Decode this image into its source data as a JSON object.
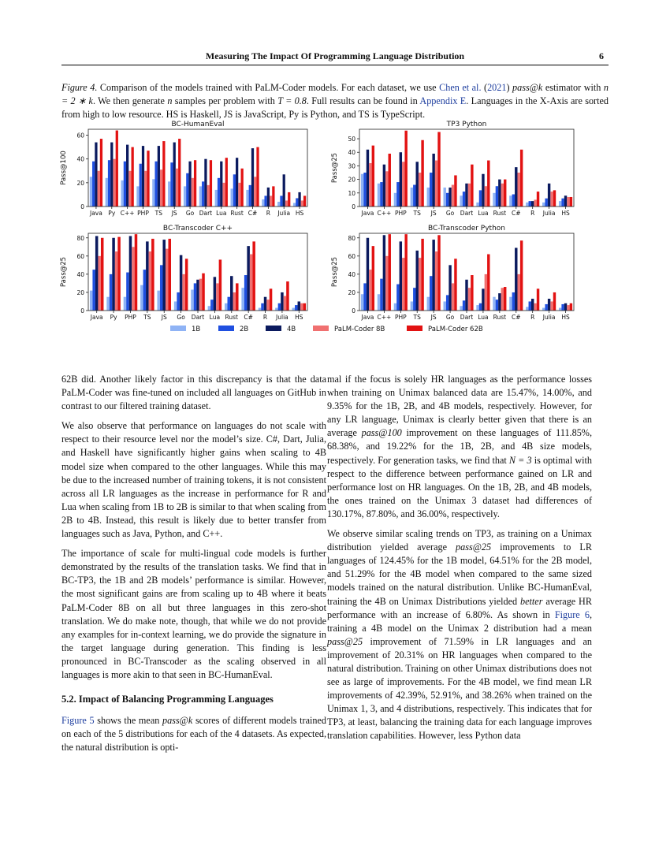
{
  "header": {
    "title": "Measuring The Impact Of Programming Language Distribution",
    "page_number": "6"
  },
  "caption": {
    "label": "Figure 4.",
    "t1": " Comparison of the models trained with PaLM-Coder models. For each dataset, we use ",
    "cite": "Chen et al.",
    "cite_year": "(2021)",
    "t2": " estimator with ",
    "m_eq": "n = 2 ∗ k",
    "t3": ". We then generate ",
    "m_n": "n",
    "t4": " samples per problem with ",
    "m_T": "T = 0.8",
    "t5": ". Full results can be found in ",
    "appendix": "Appendix E",
    "t6": ". Languages in the X-Axis are sorted from high to low resource. HS is Haskell, JS is JavaScript, Py is Python, and TS is TypeScript.",
    "passk": "pass@k"
  },
  "chart_data": [
    {
      "type": "bar",
      "title": "BC-HumanEval",
      "ylabel": "Pass@100",
      "ylim": [
        0,
        65
      ],
      "yticks": [
        0,
        20,
        40,
        60
      ],
      "categories": [
        "Java",
        "Py",
        "C++",
        "PHP",
        "TS",
        "JS",
        "Go",
        "Dart",
        "Lua",
        "Rust",
        "C#",
        "R",
        "Julia",
        "HS"
      ],
      "series": [
        {
          "name": "1B",
          "values": [
            25,
            24,
            22,
            17,
            23,
            21,
            17,
            17,
            14,
            15,
            14,
            6,
            4,
            3
          ]
        },
        {
          "name": "2B",
          "values": [
            38,
            39,
            38,
            36,
            38,
            37,
            28,
            21,
            24,
            27,
            18,
            9,
            9,
            7
          ]
        },
        {
          "name": "4B",
          "values": [
            54,
            54,
            52,
            51,
            51,
            54,
            38,
            40,
            38,
            41,
            49,
            16,
            27,
            12
          ]
        },
        {
          "name": "PaLM-Coder 8B",
          "values": [
            30,
            40,
            30,
            30,
            31,
            32,
            24,
            18,
            20,
            20,
            25,
            9,
            5,
            5
          ]
        },
        {
          "name": "PaLM-Coder 62B",
          "values": [
            57,
            64,
            50,
            47,
            55,
            57,
            39,
            39,
            41,
            32,
            50,
            17,
            12,
            9
          ]
        }
      ]
    },
    {
      "type": "bar",
      "title": "TP3 Python",
      "ylabel": "Pass@25",
      "ylim": [
        0,
        57
      ],
      "yticks": [
        0,
        10,
        20,
        30,
        40,
        50
      ],
      "categories": [
        "Java",
        "C++",
        "PHP",
        "TS",
        "JS",
        "Go",
        "Dart",
        "Lua",
        "Rust",
        "C#",
        "R",
        "Julia",
        "HS"
      ],
      "series": [
        {
          "name": "1B",
          "values": [
            24,
            17,
            10,
            14,
            14,
            14,
            8,
            3,
            10,
            8,
            3,
            3,
            4
          ]
        },
        {
          "name": "2B",
          "values": [
            25,
            18,
            18,
            16,
            25,
            10,
            11,
            12,
            15,
            9,
            4,
            6,
            6
          ]
        },
        {
          "name": "4B",
          "values": [
            42,
            31,
            40,
            33,
            39,
            14,
            17,
            24,
            20,
            29,
            4,
            17,
            8
          ]
        },
        {
          "name": "PaLM-Coder 8B",
          "values": [
            32,
            26,
            33,
            25,
            34,
            16,
            17,
            15,
            17,
            25,
            5,
            11,
            7
          ]
        },
        {
          "name": "PaLM-Coder 62B",
          "values": [
            45,
            39,
            56,
            49,
            55,
            23,
            31,
            34,
            20,
            42,
            11,
            12,
            7
          ]
        }
      ]
    },
    {
      "type": "bar",
      "title": "BC-Transcoder C++",
      "ylabel": "Pass@25",
      "ylim": [
        0,
        85
      ],
      "yticks": [
        0,
        20,
        40,
        60,
        80
      ],
      "categories": [
        "Java",
        "Py",
        "PHP",
        "TS",
        "JS",
        "Go",
        "Dart",
        "Lua",
        "Rust",
        "C#",
        "R",
        "Julia",
        "HS"
      ],
      "series": [
        {
          "name": "1B",
          "values": [
            22,
            15,
            15,
            28,
            22,
            10,
            23,
            5,
            8,
            25,
            3,
            3,
            3
          ]
        },
        {
          "name": "2B",
          "values": [
            45,
            40,
            42,
            45,
            50,
            20,
            30,
            12,
            15,
            39,
            8,
            8,
            6
          ]
        },
        {
          "name": "4B",
          "values": [
            82,
            80,
            82,
            76,
            78,
            61,
            34,
            37,
            38,
            71,
            15,
            20,
            10
          ]
        },
        {
          "name": "PaLM-Coder 8B",
          "values": [
            60,
            65,
            70,
            65,
            68,
            40,
            35,
            30,
            20,
            62,
            12,
            16,
            8
          ]
        },
        {
          "name": "PaLM-Coder 62B",
          "values": [
            80,
            81,
            84,
            79,
            79,
            57,
            41,
            56,
            30,
            76,
            24,
            32,
            8
          ]
        }
      ]
    },
    {
      "type": "bar",
      "title": "BC-Transcoder Python",
      "ylabel": "Pass@25",
      "ylim": [
        0,
        85
      ],
      "yticks": [
        0,
        20,
        40,
        60,
        80
      ],
      "categories": [
        "Java",
        "C++",
        "PHP",
        "TS",
        "JS",
        "Go",
        "Dart",
        "Lua",
        "Rust",
        "C#",
        "R",
        "Julia",
        "HS"
      ],
      "series": [
        {
          "name": "1B",
          "values": [
            18,
            18,
            8,
            10,
            15,
            10,
            5,
            6,
            15,
            15,
            4,
            3,
            3
          ]
        },
        {
          "name": "2B",
          "values": [
            30,
            35,
            29,
            25,
            38,
            17,
            11,
            8,
            12,
            20,
            10,
            7,
            7
          ]
        },
        {
          "name": "4B",
          "values": [
            80,
            83,
            76,
            66,
            78,
            50,
            34,
            24,
            19,
            69,
            13,
            13,
            8
          ]
        },
        {
          "name": "PaLM-Coder 8B",
          "values": [
            45,
            60,
            58,
            58,
            65,
            30,
            25,
            40,
            25,
            40,
            8,
            10,
            6
          ]
        },
        {
          "name": "PaLM-Coder 62B",
          "values": [
            71,
            84,
            84,
            79,
            83,
            57,
            39,
            62,
            26,
            77,
            24,
            20,
            8
          ]
        }
      ]
    }
  ],
  "legend": [
    {
      "label": "1B",
      "color": "#8fb3f5"
    },
    {
      "label": "2B",
      "color": "#1f4fe0"
    },
    {
      "label": "4B",
      "color": "#0b1a5e"
    },
    {
      "label": "PaLM-Coder 8B",
      "color": "#f07070"
    },
    {
      "label": "PaLM-Coder 62B",
      "color": "#e21212"
    }
  ],
  "left": {
    "p1": "62B did. Another likely factor in this discrepancy is that the data PaLM-Coder was fine-tuned on included all languages on GitHub in contrast to our filtered training dataset.",
    "p2": "We also observe that performance on languages do not scale with respect to their resource level nor the model’s size. C#, Dart, Julia, and Haskell have significantly higher gains when scaling to 4B model size when compared to the other languages. While this may be due to the increased number of training tokens, it is not consistent across all LR languages as the increase in performance for R and Lua when scaling from 1B to 2B is similar to that when scaling from 2B to 4B. Instead, this result is likely due to better transfer from languages such as Java, Python, and C++.",
    "p3": "The importance of scale for multi-lingual code models is further demonstrated by the results of the translation tasks. We find that in BC-TP3, the 1B and 2B models’ performance is similar. However, the most significant gains are from scaling up to 4B where it beats PaLM-Coder 8B on all but three languages in this zero-shot translation. We do make note, though, that while we do not provide any examples for in-context learning, we do provide the signature in the target language during generation. This finding is less pronounced in BC-Transcoder as the scaling observed in all languages is more akin to that seen in BC-HumanEval.",
    "heading": "5.2. Impact of Balancing Programming Languages",
    "p4_link": "Figure 5",
    "p4_a": " shows the mean ",
    "p4_m": "pass@k",
    "p4_b": " scores of different models trained on each of the 5 distributions for each of the 4 datasets. As expected, the natural distribution is opti-"
  },
  "right": {
    "p1_a": "mal if the focus is solely HR languages as the performance losses when training on Unimax balanced data are 15.47%, 14.00%, and 9.35% for the 1B, 2B, and 4B models, respectively. However, for any LR language, Unimax is clearly better given that there is an average ",
    "p1_m1": "pass@100",
    "p1_b": " improvement on these languages of 111.85%, 68.38%, and 19.22% for the 1B, 2B, and 4B size models, respectively. For generation tasks, we find that ",
    "p1_m2": "N = 3",
    "p1_c": " is optimal with respect to the difference between performance gained on LR and performance lost on HR languages. On the 1B, 2B, and 4B models, the ones trained on the Unimax 3 dataset had differences of 130.17%, 87.80%, and 36.00%, respectively.",
    "p2_a": "We observe similar scaling trends on TP3, as training on a Unimax distribution yielded average ",
    "p2_m1": "pass@25",
    "p2_b": " improvements to LR languages of 124.45% for the 1B model, 64.51% for the 2B model, and 51.29% for the 4B model when compared to the same sized models trained on the natural distribution. Unlike BC-HumanEval, training the 4B on Unimax Distributions yielded ",
    "p2_em": "better",
    "p2_c": " average HR performance with an increase of 6.80%. As shown in ",
    "p2_link": "Figure 6",
    "p2_d": ", training a 4B model on the Unimax 2 distribution had a mean ",
    "p2_m2": "pass@25",
    "p2_e": " improvement of 71.59% in LR languages and an improvement of 20.31% on HR languages when compared to the natural distribution. Training on other Unimax distributions does not see as large of improvements. For the 4B model, we find mean LR improvements of 42.39%, 52.91%, and 38.26% when trained on the Unimax 1, 3, and 4 distributions, respectively. This indicates that for TP3, at least, balancing the training data for each language improves translation capabilities. However, less Python data"
  }
}
